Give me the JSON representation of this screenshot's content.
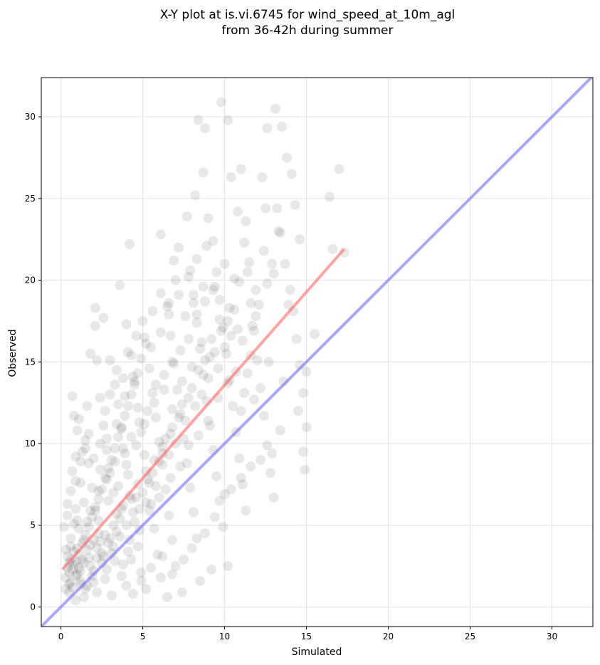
{
  "chart_data": {
    "type": "scatter",
    "title_line1": "X-Y plot at is.vi.6745 for wind_speed_at_10m_agl",
    "title_line2": "from 36-42h during summer",
    "xlabel": "Simulated",
    "ylabel": "Observed",
    "xlim": [
      -1.2,
      32.5
    ],
    "ylim": [
      -1.2,
      32.4
    ],
    "xticks": [
      0,
      5,
      10,
      15,
      20,
      25,
      30
    ],
    "yticks": [
      0,
      5,
      10,
      15,
      20,
      25,
      30
    ],
    "xtick_labels": [
      "0",
      "5",
      "10",
      "15",
      "20",
      "25",
      "30"
    ],
    "ytick_labels": [
      "0",
      "5",
      "10",
      "15",
      "20",
      "25",
      "30"
    ],
    "grid": true,
    "point_color": "#000000",
    "point_opacity": 0.09,
    "fit_line": {
      "color": "#ff6666",
      "x": [
        0.1,
        17.3
      ],
      "y": [
        2.3,
        21.9
      ]
    },
    "identity_line": {
      "color": "#6e6ef0",
      "x": [
        -1.2,
        32.5
      ],
      "y": [
        -1.2,
        32.5
      ]
    },
    "points": [
      [
        0.3,
        1.8
      ],
      [
        0.5,
        2.1
      ],
      [
        0.6,
        1.5
      ],
      [
        0.8,
        2.6
      ],
      [
        0.4,
        3.1
      ],
      [
        0.7,
        1.2
      ],
      [
        0.9,
        1.9
      ],
      [
        1.1,
        2.4
      ],
      [
        0.5,
        0.9
      ],
      [
        0.6,
        4.2
      ],
      [
        0.8,
        5.1
      ],
      [
        1.0,
        3.6
      ],
      [
        1.2,
        1.6
      ],
      [
        0.4,
        6.3
      ],
      [
        0.6,
        7.1
      ],
      [
        0.9,
        6.0
      ],
      [
        1.1,
        4.8
      ],
      [
        1.3,
        2.9
      ],
      [
        1.5,
        1.1
      ],
      [
        0.7,
        8.3
      ],
      [
        0.9,
        9.2
      ],
      [
        1.2,
        7.6
      ],
      [
        1.4,
        6.4
      ],
      [
        1.6,
        5.2
      ],
      [
        1.8,
        3.8
      ],
      [
        2.0,
        2.2
      ],
      [
        0.5,
        2.7
      ],
      [
        0.3,
        3.5
      ],
      [
        0.2,
        4.9
      ],
      [
        0.4,
        5.6
      ],
      [
        0.8,
        11.7
      ],
      [
        1.0,
        10.8
      ],
      [
        1.3,
        9.5
      ],
      [
        1.5,
        10.2
      ],
      [
        1.7,
        8.8
      ],
      [
        1.9,
        7.3
      ],
      [
        2.1,
        6.1
      ],
      [
        2.3,
        4.5
      ],
      [
        2.5,
        3.3
      ],
      [
        2.7,
        1.7
      ],
      [
        0.7,
        12.9
      ],
      [
        1.1,
        11.5
      ],
      [
        1.6,
        12.3
      ],
      [
        1.8,
        15.5
      ],
      [
        2.1,
        18.3
      ],
      [
        2.1,
        17.2
      ],
      [
        2.2,
        15.1
      ],
      [
        2.4,
        12.8
      ],
      [
        2.6,
        11.1
      ],
      [
        2.8,
        9.6
      ],
      [
        3.0,
        8.2
      ],
      [
        3.2,
        7.0
      ],
      [
        3.4,
        5.7
      ],
      [
        3.6,
        4.3
      ],
      [
        3.8,
        2.6
      ],
      [
        4.0,
        1.3
      ],
      [
        2.6,
        17.7
      ],
      [
        3.0,
        15.1
      ],
      [
        3.3,
        13.6
      ],
      [
        3.5,
        12.4
      ],
      [
        3.7,
        10.9
      ],
      [
        3.9,
        9.4
      ],
      [
        4.1,
        8.1
      ],
      [
        4.3,
        6.6
      ],
      [
        4.5,
        5.2
      ],
      [
        4.7,
        3.7
      ],
      [
        4.9,
        2.1
      ],
      [
        3.6,
        19.7
      ],
      [
        4.2,
        22.2
      ],
      [
        4.0,
        17.3
      ],
      [
        4.3,
        15.4
      ],
      [
        4.5,
        13.8
      ],
      [
        4.7,
        12.2
      ],
      [
        4.9,
        10.7
      ],
      [
        5.1,
        9.3
      ],
      [
        5.3,
        7.8
      ],
      [
        5.5,
        6.3
      ],
      [
        5.7,
        4.8
      ],
      [
        5.9,
        3.2
      ],
      [
        6.1,
        1.8
      ],
      [
        5.0,
        17.5
      ],
      [
        5.2,
        16.1
      ],
      [
        5.4,
        14.6
      ],
      [
        5.6,
        13.1
      ],
      [
        5.8,
        11.6
      ],
      [
        6.0,
        10.1
      ],
      [
        6.2,
        8.7
      ],
      [
        6.4,
        7.2
      ],
      [
        6.6,
        5.6
      ],
      [
        6.8,
        4.1
      ],
      [
        7.0,
        2.5
      ],
      [
        6.1,
        22.8
      ],
      [
        6.5,
        18.4
      ],
      [
        6.7,
        16.6
      ],
      [
        6.9,
        14.9
      ],
      [
        7.1,
        13.3
      ],
      [
        7.3,
        11.8
      ],
      [
        7.5,
        10.3
      ],
      [
        7.7,
        8.8
      ],
      [
        7.9,
        7.3
      ],
      [
        8.1,
        5.8
      ],
      [
        8.3,
        4.2
      ],
      [
        6.9,
        21.2
      ],
      [
        7.2,
        22.0
      ],
      [
        7.7,
        23.9
      ],
      [
        7.9,
        20.6
      ],
      [
        8.1,
        19.1
      ],
      [
        8.3,
        17.4
      ],
      [
        8.5,
        15.8
      ],
      [
        8.7,
        14.2
      ],
      [
        8.9,
        12.6
      ],
      [
        9.1,
        11.1
      ],
      [
        9.3,
        9.6
      ],
      [
        9.5,
        8.0
      ],
      [
        9.7,
        6.5
      ],
      [
        9.9,
        4.9
      ],
      [
        8.2,
        25.2
      ],
      [
        8.4,
        29.8
      ],
      [
        8.8,
        29.3
      ],
      [
        8.7,
        26.6
      ],
      [
        9.0,
        23.8
      ],
      [
        9.3,
        22.4
      ],
      [
        9.5,
        20.5
      ],
      [
        9.7,
        18.8
      ],
      [
        9.9,
        17.1
      ],
      [
        10.1,
        15.5
      ],
      [
        10.3,
        13.9
      ],
      [
        10.5,
        12.3
      ],
      [
        10.7,
        10.7
      ],
      [
        10.9,
        9.1
      ],
      [
        11.1,
        7.5
      ],
      [
        11.3,
        5.9
      ],
      [
        9.8,
        30.9
      ],
      [
        10.2,
        29.8
      ],
      [
        10.4,
        26.3
      ],
      [
        10.8,
        24.2
      ],
      [
        11.0,
        26.8
      ],
      [
        11.2,
        22.3
      ],
      [
        11.4,
        20.5
      ],
      [
        11.6,
        18.6
      ],
      [
        11.8,
        16.9
      ],
      [
        12.0,
        15.1
      ],
      [
        12.2,
        13.4
      ],
      [
        12.4,
        11.7
      ],
      [
        12.6,
        9.9
      ],
      [
        12.8,
        8.2
      ],
      [
        13.0,
        6.7
      ],
      [
        12.3,
        26.3
      ],
      [
        12.6,
        29.3
      ],
      [
        13.1,
        30.5
      ],
      [
        13.2,
        24.4
      ],
      [
        13.5,
        29.4
      ],
      [
        13.8,
        27.5
      ],
      [
        14.1,
        26.5
      ],
      [
        14.3,
        24.6
      ],
      [
        13.4,
        22.9
      ],
      [
        13.7,
        21.0
      ],
      [
        14.0,
        19.4
      ],
      [
        14.2,
        18.1
      ],
      [
        14.4,
        16.4
      ],
      [
        14.6,
        14.8
      ],
      [
        14.8,
        13.1
      ],
      [
        15.0,
        11.0
      ],
      [
        14.8,
        9.5
      ],
      [
        14.9,
        8.4
      ],
      [
        15.0,
        14.4
      ],
      [
        15.5,
        16.7
      ],
      [
        16.4,
        25.1
      ],
      [
        16.6,
        21.9
      ],
      [
        17.0,
        26.8
      ],
      [
        17.3,
        21.7
      ],
      [
        12.9,
        21.0
      ],
      [
        13.3,
        23.0
      ],
      [
        12.5,
        24.4
      ],
      [
        11.9,
        17.8
      ],
      [
        12.7,
        15.0
      ],
      [
        13.6,
        13.8
      ],
      [
        13.9,
        18.5
      ],
      [
        14.5,
        12.0
      ],
      [
        14.6,
        22.5
      ],
      [
        1.4,
        0.6
      ],
      [
        2.2,
        0.9
      ],
      [
        3.1,
        0.7
      ],
      [
        4.4,
        0.8
      ],
      [
        5.2,
        1.1
      ],
      [
        6.5,
        0.6
      ],
      [
        7.4,
        0.9
      ],
      [
        8.5,
        1.6
      ],
      [
        9.2,
        2.3
      ],
      [
        10.2,
        2.5
      ],
      [
        2.9,
        3.9
      ],
      [
        3.3,
        2.8
      ],
      [
        4.1,
        3.4
      ],
      [
        4.8,
        4.7
      ],
      [
        5.4,
        5.9
      ],
      [
        6.0,
        6.7
      ],
      [
        6.7,
        7.9
      ],
      [
        7.3,
        8.6
      ],
      [
        7.8,
        9.9
      ],
      [
        8.4,
        10.5
      ],
      [
        9.0,
        11.4
      ],
      [
        9.6,
        12.8
      ],
      [
        10.2,
        13.7
      ],
      [
        10.7,
        14.4
      ],
      [
        11.1,
        16.3
      ],
      [
        11.7,
        17.2
      ],
      [
        12.1,
        18.5
      ],
      [
        12.6,
        19.8
      ],
      [
        13.0,
        20.4
      ],
      [
        2.4,
        8.4
      ],
      [
        2.8,
        10.3
      ],
      [
        3.4,
        11.2
      ],
      [
        3.9,
        12.9
      ],
      [
        4.4,
        14.1
      ],
      [
        4.9,
        15.2
      ],
      [
        5.5,
        15.9
      ],
      [
        6.1,
        16.8
      ],
      [
        6.6,
        17.9
      ],
      [
        7.2,
        19.1
      ],
      [
        7.8,
        20.2
      ],
      [
        8.3,
        21.3
      ],
      [
        8.9,
        22.1
      ],
      [
        9.4,
        19.6
      ],
      [
        10.0,
        21.0
      ],
      [
        10.6,
        20.1
      ],
      [
        11.3,
        23.6
      ],
      [
        11.9,
        19.4
      ],
      [
        12.4,
        21.8
      ],
      [
        1.9,
        1.9
      ],
      [
        2.5,
        2.7
      ],
      [
        3.1,
        3.3
      ],
      [
        3.7,
        1.9
      ],
      [
        4.3,
        2.9
      ],
      [
        4.9,
        1.6
      ],
      [
        5.5,
        2.4
      ],
      [
        6.2,
        3.1
      ],
      [
        6.8,
        2.0
      ],
      [
        7.5,
        2.9
      ],
      [
        8.0,
        3.6
      ],
      [
        8.8,
        4.5
      ],
      [
        9.4,
        5.5
      ],
      [
        10.0,
        6.9
      ],
      [
        10.4,
        7.2
      ],
      [
        11.0,
        7.9
      ],
      [
        11.6,
        8.6
      ],
      [
        12.2,
        9.0
      ],
      [
        12.9,
        9.4
      ],
      [
        13.4,
        10.8
      ],
      [
        0.9,
        0.4
      ],
      [
        1.6,
        1.3
      ],
      [
        2.0,
        4.1
      ],
      [
        2.3,
        5.3
      ],
      [
        2.9,
        6.5
      ],
      [
        3.5,
        7.4
      ],
      [
        4.0,
        8.7
      ],
      [
        4.6,
        9.9
      ],
      [
        5.1,
        11.2
      ],
      [
        5.7,
        12.5
      ],
      [
        6.3,
        13.3
      ],
      [
        6.8,
        12.1
      ],
      [
        7.4,
        13.8
      ],
      [
        8.0,
        14.7
      ],
      [
        8.6,
        16.2
      ],
      [
        9.1,
        15.3
      ],
      [
        9.7,
        17.6
      ],
      [
        10.3,
        18.3
      ],
      [
        10.9,
        19.9
      ],
      [
        11.5,
        21.1
      ],
      [
        1.2,
        2.2
      ],
      [
        1.7,
        3.0
      ],
      [
        2.2,
        3.6
      ],
      [
        2.7,
        4.4
      ],
      [
        3.2,
        5.0
      ],
      [
        3.7,
        6.0
      ],
      [
        4.2,
        6.8
      ],
      [
        4.7,
        7.5
      ],
      [
        5.2,
        8.3
      ],
      [
        5.7,
        9.0
      ],
      [
        6.2,
        9.8
      ],
      [
        6.7,
        10.6
      ],
      [
        0.6,
        3.7
      ],
      [
        1.0,
        5.3
      ],
      [
        1.4,
        4.1
      ],
      [
        1.8,
        5.9
      ],
      [
        2.3,
        7.1
      ],
      [
        2.8,
        7.8
      ],
      [
        3.3,
        8.9
      ],
      [
        3.8,
        9.7
      ],
      [
        4.3,
        10.4
      ],
      [
        4.8,
        11.3
      ],
      [
        5.3,
        12.0
      ],
      [
        5.8,
        13.6
      ],
      [
        6.3,
        14.2
      ],
      [
        6.8,
        15.0
      ],
      [
        7.3,
        15.7
      ],
      [
        7.8,
        16.4
      ],
      [
        8.3,
        17.9
      ],
      [
        8.8,
        18.7
      ],
      [
        9.3,
        19.4
      ],
      [
        0.3,
        1.1
      ],
      [
        0.5,
        1.4
      ],
      [
        0.7,
        2.3
      ],
      [
        0.9,
        2.8
      ],
      [
        1.1,
        3.2
      ],
      [
        1.3,
        3.9
      ],
      [
        1.5,
        4.4
      ],
      [
        1.7,
        4.9
      ],
      [
        1.9,
        5.5
      ],
      [
        2.1,
        5.9
      ],
      [
        2.3,
        6.6
      ],
      [
        2.5,
        7.2
      ],
      [
        2.7,
        7.9
      ],
      [
        2.9,
        8.5
      ],
      [
        3.1,
        9.0
      ],
      [
        3.3,
        9.7
      ],
      [
        3.5,
        10.4
      ],
      [
        3.7,
        11.0
      ],
      [
        3.9,
        11.7
      ],
      [
        4.1,
        12.3
      ],
      [
        4.3,
        13.0
      ],
      [
        4.5,
        13.6
      ],
      [
        4.7,
        14.3
      ],
      [
        0.4,
        2.4
      ],
      [
        0.6,
        2.9
      ],
      [
        0.8,
        3.4
      ],
      [
        1.0,
        2.0
      ],
      [
        1.2,
        1.4
      ],
      [
        1.4,
        2.7
      ],
      [
        1.6,
        3.5
      ],
      [
        1.8,
        2.5
      ],
      [
        2.0,
        1.5
      ],
      [
        2.2,
        3.0
      ],
      [
        2.4,
        4.0
      ],
      [
        2.6,
        3.1
      ],
      [
        2.8,
        2.3
      ],
      [
        3.0,
        4.2
      ],
      [
        3.2,
        3.7
      ],
      [
        3.4,
        4.6
      ],
      [
        3.6,
        5.4
      ],
      [
        3.8,
        6.2
      ],
      [
        4.0,
        5.0
      ],
      [
        4.2,
        4.1
      ],
      [
        4.4,
        5.8
      ],
      [
        4.6,
        6.7
      ],
      [
        4.8,
        6.0
      ],
      [
        5.0,
        7.0
      ],
      [
        5.2,
        6.4
      ],
      [
        5.4,
        7.6
      ],
      [
        5.6,
        8.2
      ],
      [
        5.8,
        7.4
      ],
      [
        6.0,
        8.9
      ],
      [
        6.2,
        9.4
      ],
      [
        6.4,
        10.3
      ],
      [
        6.6,
        9.3
      ],
      [
        6.8,
        11.0
      ],
      [
        7.0,
        10.0
      ],
      [
        7.2,
        11.6
      ],
      [
        7.4,
        12.4
      ],
      [
        7.6,
        11.4
      ],
      [
        7.8,
        12.8
      ],
      [
        8.0,
        13.4
      ],
      [
        8.2,
        12.3
      ],
      [
        8.4,
        14.5
      ],
      [
        8.6,
        13.0
      ],
      [
        8.8,
        15.1
      ],
      [
        9.0,
        14.0
      ],
      [
        9.2,
        16.4
      ],
      [
        9.4,
        15.6
      ],
      [
        9.6,
        14.6
      ],
      [
        9.8,
        16.9
      ],
      [
        10.0,
        15.9
      ],
      [
        10.2,
        17.5
      ],
      [
        10.4,
        16.6
      ],
      [
        10.6,
        18.2
      ],
      [
        10.8,
        17.0
      ],
      [
        11.0,
        12.0
      ],
      [
        11.2,
        13.1
      ],
      [
        11.4,
        14.3
      ],
      [
        11.6,
        15.4
      ],
      [
        11.8,
        12.7
      ],
      [
        1.5,
        9.7
      ],
      [
        1.2,
        8.9
      ],
      [
        0.9,
        7.7
      ],
      [
        1.7,
        10.6
      ],
      [
        2.0,
        9.1
      ],
      [
        2.4,
        10.0
      ],
      [
        2.7,
        12.0
      ],
      [
        3.0,
        13.0
      ],
      [
        3.4,
        14.5
      ],
      [
        3.8,
        14.0
      ],
      [
        4.1,
        15.6
      ],
      [
        4.6,
        16.6
      ],
      [
        5.1,
        16.5
      ],
      [
        5.6,
        18.1
      ],
      [
        6.1,
        19.2
      ],
      [
        6.6,
        18.6
      ],
      [
        7.0,
        20.0
      ],
      [
        7.6,
        17.8
      ],
      [
        8.1,
        18.6
      ],
      [
        8.7,
        19.6
      ]
    ]
  }
}
